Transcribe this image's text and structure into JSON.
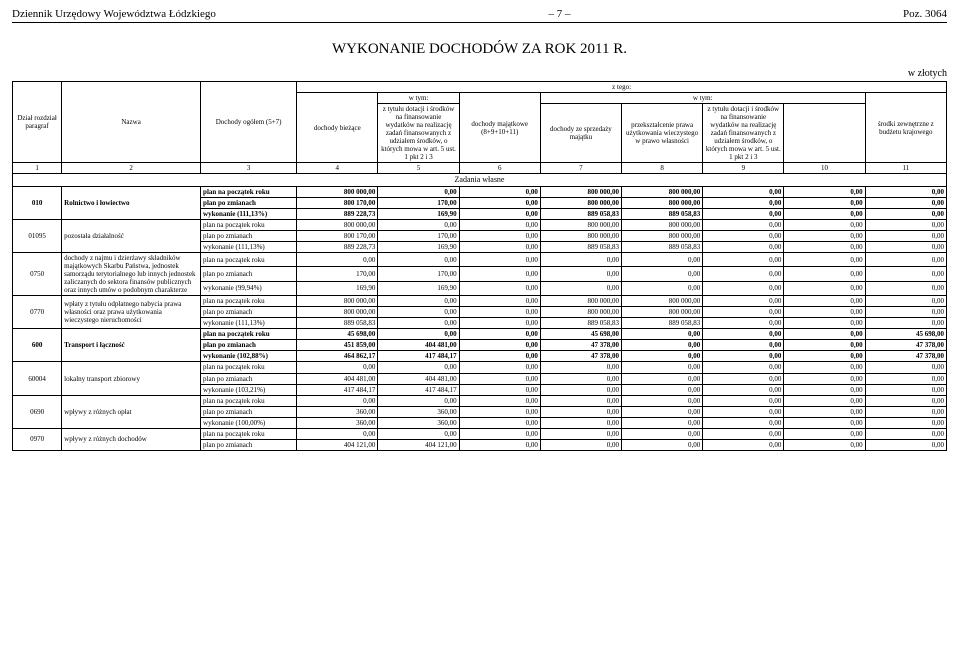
{
  "topbar": {
    "left": "Dziennik Urzędowy Województwa Łódzkiego",
    "center": "– 7 –",
    "right": "Poz. 3064"
  },
  "title": "WYKONANIE DOCHODÓW ZA ROK 2011 R.",
  "unit": "w złotych",
  "headers": {
    "dzial": "Dział rozdział paragraf",
    "nazwa": "Nazwa",
    "doch_ogolem": "Dochody ogółem (5+7)",
    "doch_biezace": "dochody bieżące",
    "ztego": "z tego:",
    "wtym": "w tym:",
    "col5": "z tytułu dotacji i środków na finansowanie wydatków na realizację zadań finansowanych z udziałem środków, o których mowa w art. 5 ust. 1 pkt 2 i 3",
    "doch_majatkowe": "dochody majątkowe (8+9+10+11)",
    "doch_ze_sprzedazy": "dochody ze sprzedaży majątku",
    "przeksztalcenie": "przekształcenie prawa użytkowania wieczystego w prawo własności",
    "col9": "z tytułu dotacji i środków na finansowanie wydatków na realizację zadań finansowanych z udziałem środków, o których mowa w art. 5 ust. 1 pkt 2 i 3",
    "srodki_zewn": "środki zewnętrzne z budżetu krajowego",
    "numrow": [
      "1",
      "2",
      "3",
      "4",
      "5",
      "6",
      "7",
      "8",
      "9",
      "10",
      "11"
    ],
    "zadania": "Zadania własne"
  },
  "labels": {
    "plan_poczatek": "plan na początek roku",
    "plan_zmiany": "plan po zmianach",
    "wyk111": "wykonanie (111,13%)",
    "wyk9994": "wykonanie (99,94%)",
    "wyk10288": "wykonanie (102,88%)",
    "wyk10321": "wykonanie (103,21%)",
    "wyk10000": "wykonanie (100,00%)"
  },
  "rows": [
    {
      "type": "bold",
      "c1": "",
      "c2": "",
      "label_key": "plan_poczatek",
      "v": [
        "800 000,00",
        "0,00",
        "0,00",
        "800 000,00",
        "800 000,00",
        "0,00",
        "0,00",
        "0,00"
      ]
    },
    {
      "type": "bold",
      "c1": "010",
      "c2": "Rolnictwo i łowiectwo",
      "label_key": "plan_zmiany",
      "v": [
        "800 170,00",
        "170,00",
        "0,00",
        "800 000,00",
        "800 000,00",
        "0,00",
        "0,00",
        "0,00"
      ]
    },
    {
      "type": "bold",
      "c1": "",
      "c2": "",
      "label_key": "wyk111",
      "v": [
        "889 228,73",
        "169,90",
        "0,00",
        "889 058,83",
        "889 058,83",
        "0,00",
        "0,00",
        "0,00"
      ]
    },
    {
      "type": "norm",
      "c1": "",
      "c2": "",
      "label_key": "plan_poczatek",
      "v": [
        "800 000,00",
        "0,00",
        "0,00",
        "800 000,00",
        "800 000,00",
        "0,00",
        "0,00",
        "0,00"
      ]
    },
    {
      "type": "norm",
      "c1": "01095",
      "c2": "pozostała działalność",
      "label_key": "plan_zmiany",
      "v": [
        "800 170,00",
        "170,00",
        "0,00",
        "800 000,00",
        "800 000,00",
        "0,00",
        "0,00",
        "0,00"
      ]
    },
    {
      "type": "norm",
      "c1": "",
      "c2": "",
      "label_key": "wyk111",
      "v": [
        "889 228,73",
        "169,90",
        "0,00",
        "889 058,83",
        "889 058,83",
        "0,00",
        "0,00",
        "0,00"
      ]
    },
    {
      "type": "norm",
      "c1": "",
      "c2": "",
      "label_key": "plan_poczatek",
      "v": [
        "0,00",
        "0,00",
        "0,00",
        "0,00",
        "0,00",
        "0,00",
        "0,00",
        "0,00"
      ]
    },
    {
      "type": "norm",
      "c1": "0750",
      "c2": "dochody z najmu i dzierżawy składników majątkowych Skarbu Państwa, jednostek samorządu terytorialnego lub innych jednostek zaliczanych do sektora finansów publicznych oraz innych umów o podobnym charakterze",
      "label_key": "plan_zmiany",
      "v": [
        "170,00",
        "170,00",
        "0,00",
        "0,00",
        "0,00",
        "0,00",
        "0,00",
        "0,00"
      ]
    },
    {
      "type": "norm",
      "c1": "",
      "c2": "",
      "label_key": "wyk9994",
      "v": [
        "169,90",
        "169,90",
        "0,00",
        "0,00",
        "0,00",
        "0,00",
        "0,00",
        "0,00"
      ]
    },
    {
      "type": "norm",
      "c1": "",
      "c2": "",
      "label_key": "plan_poczatek",
      "v": [
        "800 000,00",
        "0,00",
        "0,00",
        "800 000,00",
        "800 000,00",
        "0,00",
        "0,00",
        "0,00"
      ]
    },
    {
      "type": "norm",
      "c1": "0770",
      "c2": "wpłaty z tytułu odpłatnego nabycia prawa własności oraz prawa użytkowania wieczystego nieruchomości",
      "label_key": "plan_zmiany",
      "v": [
        "800 000,00",
        "0,00",
        "0,00",
        "800 000,00",
        "800 000,00",
        "0,00",
        "0,00",
        "0,00"
      ]
    },
    {
      "type": "norm",
      "c1": "",
      "c2": "",
      "label_key": "wyk111",
      "v": [
        "889 058,83",
        "0,00",
        "0,00",
        "889 058,83",
        "889 058,83",
        "0,00",
        "0,00",
        "0,00"
      ]
    },
    {
      "type": "bold",
      "c1": "",
      "c2": "",
      "label_key": "plan_poczatek",
      "v": [
        "45 698,00",
        "0,00",
        "0,00",
        "45 698,00",
        "0,00",
        "0,00",
        "0,00",
        "45 698,00"
      ]
    },
    {
      "type": "bold",
      "c1": "600",
      "c2": "Transport i łączność",
      "label_key": "plan_zmiany",
      "v": [
        "451 859,00",
        "404 481,00",
        "0,00",
        "47 378,00",
        "0,00",
        "0,00",
        "0,00",
        "47 378,00"
      ]
    },
    {
      "type": "bold",
      "c1": "",
      "c2": "",
      "label_key": "wyk10288",
      "v": [
        "464 862,17",
        "417 484,17",
        "0,00",
        "47 378,00",
        "0,00",
        "0,00",
        "0,00",
        "47 378,00"
      ]
    },
    {
      "type": "norm",
      "c1": "",
      "c2": "",
      "label_key": "plan_poczatek",
      "v": [
        "0,00",
        "0,00",
        "0,00",
        "0,00",
        "0,00",
        "0,00",
        "0,00",
        "0,00"
      ]
    },
    {
      "type": "norm",
      "c1": "60004",
      "c2": "lokalny transport zbiorowy",
      "label_key": "plan_zmiany",
      "v": [
        "404 481,00",
        "404 481,00",
        "0,00",
        "0,00",
        "0,00",
        "0,00",
        "0,00",
        "0,00"
      ]
    },
    {
      "type": "norm",
      "c1": "",
      "c2": "",
      "label_key": "wyk10321",
      "v": [
        "417 484,17",
        "417 484,17",
        "0,00",
        "0,00",
        "0,00",
        "0,00",
        "0,00",
        "0,00"
      ]
    },
    {
      "type": "norm",
      "c1": "",
      "c2": "",
      "label_key": "plan_poczatek",
      "v": [
        "0,00",
        "0,00",
        "0,00",
        "0,00",
        "0,00",
        "0,00",
        "0,00",
        "0,00"
      ]
    },
    {
      "type": "norm",
      "c1": "0690",
      "c2": "wpływy z różnych opłat",
      "label_key": "plan_zmiany",
      "v": [
        "360,00",
        "360,00",
        "0,00",
        "0,00",
        "0,00",
        "0,00",
        "0,00",
        "0,00"
      ]
    },
    {
      "type": "norm",
      "c1": "",
      "c2": "",
      "label_key": "wyk10000",
      "v": [
        "360,00",
        "360,00",
        "0,00",
        "0,00",
        "0,00",
        "0,00",
        "0,00",
        "0,00"
      ]
    },
    {
      "type": "norm",
      "c1": "",
      "c2": "",
      "label_key": "plan_poczatek",
      "v": [
        "0,00",
        "0,00",
        "0,00",
        "0,00",
        "0,00",
        "0,00",
        "0,00",
        "0,00"
      ]
    },
    {
      "type": "norm",
      "c1": "0970",
      "c2": "wpływy z różnych dochodów",
      "label_key": "plan_zmiany",
      "v": [
        "404 121,00",
        "404 121,00",
        "0,00",
        "0,00",
        "0,00",
        "0,00",
        "0,00",
        "0,00"
      ]
    }
  ]
}
